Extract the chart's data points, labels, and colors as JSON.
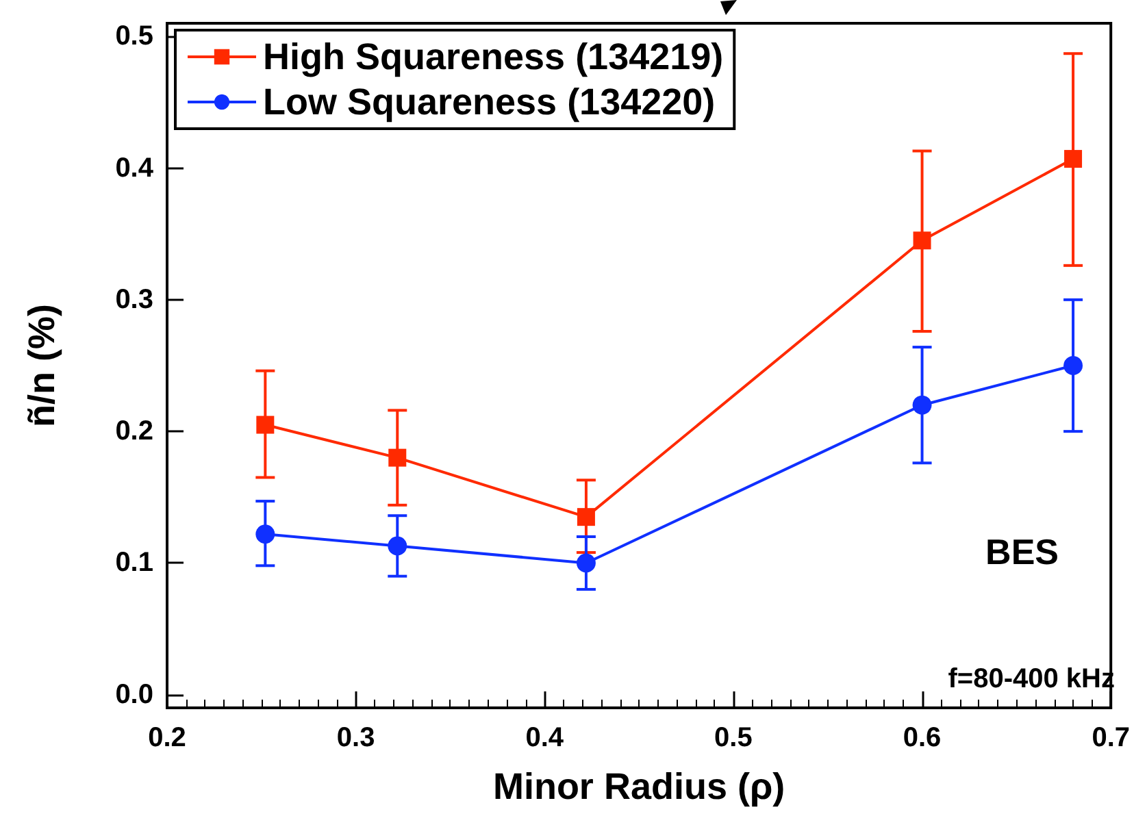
{
  "chart_data": {
    "type": "line",
    "xlabel": "Minor Radius (ρ)",
    "ylabel": "ñ/n (%)",
    "xlim": [
      0.2,
      0.7
    ],
    "xticks": [
      0.2,
      0.3,
      0.4,
      0.5,
      0.6,
      0.7
    ],
    "ylim": [
      -0.01,
      0.51
    ],
    "yticks": [
      {
        "value": 0,
        "label": "0.0"
      },
      0.1,
      0.2,
      0.3,
      0.4,
      0.5
    ],
    "x": [
      0.252,
      0.322,
      0.422,
      0.6,
      0.68
    ],
    "series": [
      {
        "name": "High Squareness (134219)",
        "color": "#ff2a00",
        "marker": "square",
        "values": [
          0.205,
          0.18,
          0.135,
          0.345,
          0.407
        ],
        "errors": [
          [
            0.165,
            0.246
          ],
          [
            0.144,
            0.216
          ],
          [
            0.108,
            0.163
          ],
          [
            0.276,
            0.413
          ],
          [
            0.326,
            0.487
          ]
        ]
      },
      {
        "name": "Low Squareness (134220)",
        "color": "#1030ff",
        "marker": "circle",
        "values": [
          0.122,
          0.113,
          0.1,
          0.22,
          0.25
        ],
        "errors": [
          [
            0.098,
            0.147
          ],
          [
            0.09,
            0.136
          ],
          [
            0.08,
            0.12
          ],
          [
            0.176,
            0.264
          ],
          [
            0.2,
            0.3
          ]
        ]
      }
    ],
    "annotations": [
      "BES",
      "f=80-400 kHz"
    ],
    "legend": "top left",
    "grid": false,
    "line_style": "solid"
  }
}
